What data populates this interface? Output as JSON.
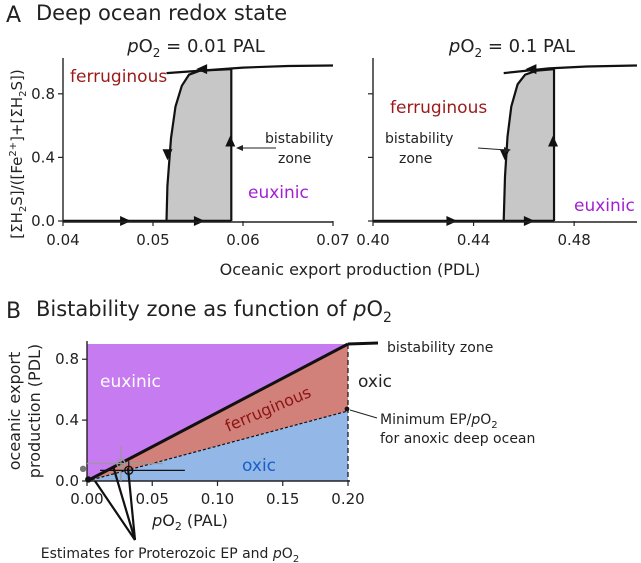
{
  "figure": {
    "panel_a_letter": "A",
    "panel_a_title": "Deep ocean redox state",
    "panel_b_letter": "B",
    "panel_b_title_prefix": "Bistability zone as function of ",
    "panel_b_title_var": "p",
    "panel_b_title_o": "O",
    "panel_b_title_sub": "2",
    "shared_ylabel": {
      "open1": "[ΣH",
      "sub1": "2",
      "mid1": "S]/([Fe",
      "sup1": "2+",
      "mid2": "]+[ΣH",
      "sub2": "2",
      "close": "S])"
    },
    "shared_xlabel": "Oceanic export production (PDL)"
  },
  "chart_data": [
    {
      "type": "line",
      "panel": "A-left",
      "title_prefix": "p",
      "title_o": "O",
      "title_sub": "2",
      "title_suffix": " = 0.01 PAL",
      "xlim": [
        0.04,
        0.07
      ],
      "ylim": [
        0,
        1
      ],
      "x_ticks": [
        0.04,
        0.05,
        0.06,
        0.07
      ],
      "x_tick_labels": [
        "0.04",
        "0.05",
        "0.06",
        "0.07"
      ],
      "y_ticks": [
        0.0,
        0.4,
        0.8
      ],
      "y_tick_labels": [
        "0.0",
        "0.4",
        "0.8"
      ],
      "bistability_range": [
        0.0515,
        0.0587
      ],
      "lower_branch": [
        [
          0.04,
          0.0
        ],
        [
          0.0587,
          0.0
        ]
      ],
      "upper_branch": [
        [
          0.0515,
          0.93
        ],
        [
          0.06,
          0.965
        ],
        [
          0.065,
          0.975
        ],
        [
          0.07,
          0.978
        ]
      ],
      "separatrix": [
        [
          0.0515,
          0.0
        ],
        [
          0.0516,
          0.22
        ],
        [
          0.052,
          0.52
        ],
        [
          0.0525,
          0.72
        ],
        [
          0.0532,
          0.85
        ],
        [
          0.054,
          0.92
        ],
        [
          0.0552,
          0.945
        ],
        [
          0.0587,
          0.955
        ]
      ],
      "labels": {
        "ferruginous": "ferruginous",
        "euxinic": "euxinic",
        "bistability_line1": "bistability",
        "bistability_line2": "zone"
      },
      "colors": {
        "shade": "#c7c7c7",
        "ferruginous": "#9b1a1a",
        "euxinic": "#a21fd6"
      }
    },
    {
      "type": "line",
      "panel": "A-right",
      "title_prefix": "p",
      "title_o": "O",
      "title_sub": "2",
      "title_suffix": " = 0.1 PAL",
      "xlim": [
        0.4,
        0.505
      ],
      "ylim": [
        0,
        1
      ],
      "x_ticks": [
        0.4,
        0.44,
        0.48
      ],
      "x_tick_labels": [
        "0.40",
        "0.44",
        "0.48"
      ],
      "bistability_range": [
        0.452,
        0.472
      ],
      "lower_branch": [
        [
          0.4,
          0.0
        ],
        [
          0.472,
          0.0
        ]
      ],
      "upper_branch": [
        [
          0.452,
          0.93
        ],
        [
          0.47,
          0.96
        ],
        [
          0.485,
          0.972
        ],
        [
          0.505,
          0.978
        ]
      ],
      "separatrix": [
        [
          0.452,
          0.0
        ],
        [
          0.4525,
          0.28
        ],
        [
          0.4535,
          0.53
        ],
        [
          0.455,
          0.72
        ],
        [
          0.4575,
          0.86
        ],
        [
          0.4605,
          0.92
        ],
        [
          0.465,
          0.945
        ],
        [
          0.472,
          0.955
        ]
      ],
      "labels": {
        "ferruginous": "ferruginous",
        "euxinic": "euxinic",
        "bistability_line1": "bistability",
        "bistability_line2": "zone"
      },
      "colors": {
        "shade": "#c7c7c7",
        "ferruginous": "#9b1a1a",
        "euxinic": "#a21fd6"
      }
    },
    {
      "type": "area",
      "panel": "B",
      "xlabel_var": "p",
      "xlabel_o": "O",
      "xlabel_sub": "2",
      "xlabel_suffix": " (PAL)",
      "ylabel_line1": "oceanic export",
      "ylabel_line2": "production (PDL)",
      "xlim": [
        0.0,
        0.2
      ],
      "ylim": [
        0.0,
        0.9
      ],
      "x_ticks": [
        0.0,
        0.05,
        0.1,
        0.15,
        0.2
      ],
      "x_tick_labels": [
        "0.00",
        "0.05",
        "0.10",
        "0.15",
        "0.20"
      ],
      "y_ticks": [
        0.0,
        0.4,
        0.8
      ],
      "y_tick_labels": [
        "0.0",
        "0.4",
        "0.8"
      ],
      "upper_boundary": [
        [
          0.0,
          0.0
        ],
        [
          0.2,
          0.9
        ]
      ],
      "lower_boundary": [
        [
          0.0,
          0.0
        ],
        [
          0.2,
          0.46
        ]
      ],
      "region_labels": {
        "euxinic": "euxinic",
        "ferruginous": "ferruginous",
        "oxic_lower": "oxic",
        "oxic_right": "oxic"
      },
      "annotations": {
        "bistability_zone": "bistability zone",
        "min_ep_line1_prefix": "Minimum EP/",
        "min_ep_line1_var": "p",
        "min_ep_line1_o": "O",
        "min_ep_line1_sub": "2",
        "min_ep_line2": "for anoxic deep ocean",
        "estimates_prefix": "Estimates for Proterozoic EP and ",
        "estimates_var": "p",
        "estimates_o": "O",
        "estimates_sub": "2"
      },
      "estimate_points": [
        {
          "x": 0.026,
          "y": 0.115,
          "xerr": [
            0.0,
            0.058
          ],
          "yerr": [
            0.0,
            0.23
          ],
          "color": "#999999"
        },
        {
          "x": 0.032,
          "y": 0.07,
          "xerr": [
            0.01,
            0.075
          ],
          "yerr": [
            0.02,
            0.13
          ],
          "color": "#111111"
        },
        {
          "x": -0.003,
          "y": 0.08,
          "color": "#777777"
        },
        {
          "x": 0.001,
          "y": 0.01,
          "color": "#111111"
        }
      ],
      "colors": {
        "euxinic": "#c77bf0",
        "ferruginous": "#d2807a",
        "oxic": "#93b7e6",
        "euxinic_text": "#ffffff",
        "ferruginous_text": "#8b1414",
        "oxic_text": "#1a5fc7"
      }
    }
  ]
}
